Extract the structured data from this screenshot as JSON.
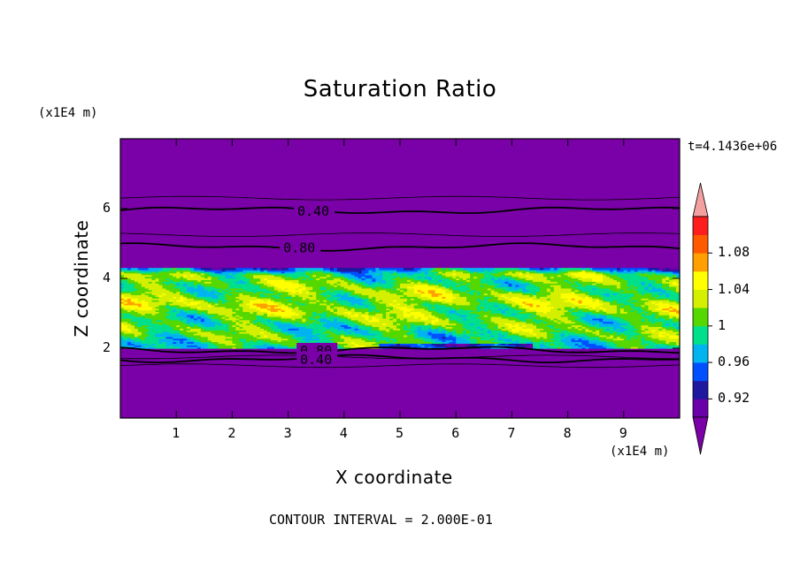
{
  "chart_data": {
    "type": "heatmap",
    "title": "Saturation Ratio",
    "xlabel": "X coordinate",
    "ylabel": "Z coordinate",
    "x_unit": "(x1E4 m)",
    "y_unit": "(x1E4 m)",
    "time_label": "t=4.1436e+06",
    "footer": "CONTOUR INTERVAL = 2.000E-01",
    "xlim": [
      0,
      10
    ],
    "ylim": [
      0,
      8
    ],
    "x_ticks": [
      "1",
      "2",
      "3",
      "4",
      "5",
      "6",
      "7",
      "8",
      "9"
    ],
    "y_ticks": [
      "2",
      "4",
      "6"
    ],
    "colorbar": {
      "levels": [
        0.9,
        0.92,
        0.94,
        0.96,
        0.98,
        1.0,
        1.02,
        1.04,
        1.06,
        1.08,
        1.1
      ],
      "tick_labels": [
        "0.92",
        "0.96",
        "1",
        "1.04",
        "1.08"
      ],
      "colors": [
        "#6a00a8",
        "#1e18a0",
        "#0050ff",
        "#00b4f0",
        "#00e08c",
        "#55d800",
        "#d4f000",
        "#ffff00",
        "#ffa000",
        "#ff5a00",
        "#ff1e1e"
      ],
      "over_color": "#f5a0a0",
      "under_color": "#7a00a8"
    },
    "background_color": "#7a00a8",
    "moist_layer_z": [
      2.0,
      4.3
    ],
    "contours": [
      {
        "label": "0.40",
        "z": 5.95
      },
      {
        "label": "0.80",
        "z": 4.9
      },
      {
        "label": "0.80",
        "z": 1.95
      },
      {
        "label": "0.40",
        "z": 1.7
      }
    ]
  }
}
